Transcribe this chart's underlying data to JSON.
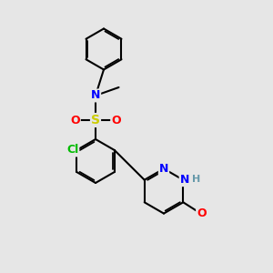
{
  "bg_color": "#e6e6e6",
  "bond_color": "#000000",
  "bond_width": 1.5,
  "dbo": 0.06,
  "atom_colors": {
    "N": "#0000ff",
    "O": "#ff0000",
    "S": "#cccc00",
    "Cl": "#00bb00",
    "H": "#6699aa",
    "C": "#000000"
  }
}
